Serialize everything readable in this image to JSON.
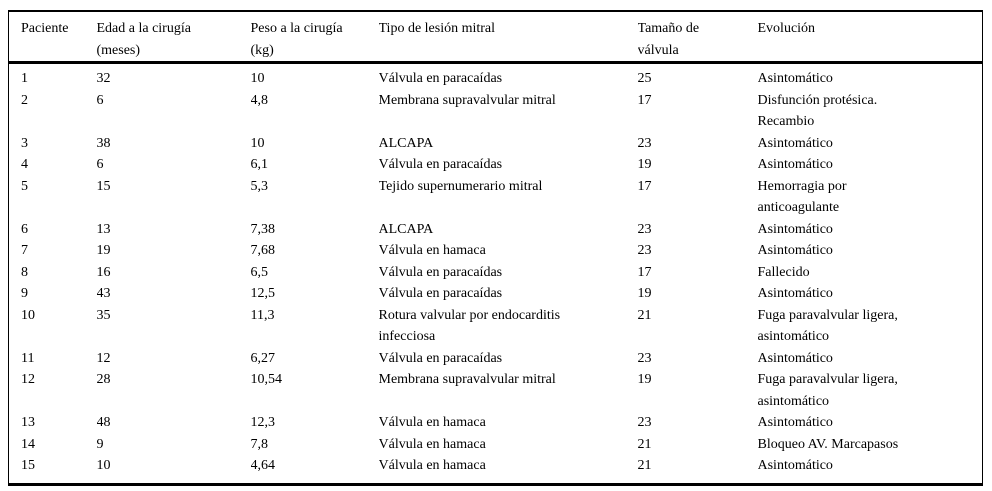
{
  "page": {
    "background_color": "#ffffff",
    "text_color": "#000000",
    "rule_color": "#000000"
  },
  "table": {
    "col_keys": [
      "paciente",
      "edad",
      "peso",
      "tipo",
      "tamano",
      "evolucion"
    ],
    "headers": [
      "Paciente",
      "Edad a la cirugía\n(meses)",
      "Peso a la cirugía\n(kg)",
      "Tipo de lesión mitral",
      "Tamaño de\nválvula",
      "Evolución"
    ],
    "rows": [
      [
        "1",
        "32",
        "10",
        "Válvula en paracaídas",
        "25",
        "Asintomático"
      ],
      [
        "2",
        "6",
        "4,8",
        "Membrana supravalvular mitral",
        "17",
        "Disfunción protésica.\nRecambio"
      ],
      [
        "3",
        "38",
        "10",
        "ALCAPA",
        "23",
        "Asintomático"
      ],
      [
        "4",
        "6",
        "6,1",
        "Válvula en paracaídas",
        "19",
        "Asintomático"
      ],
      [
        "5",
        "15",
        "5,3",
        "Tejido supernumerario mitral",
        "17",
        "Hemorragia por\nanticoagulante"
      ],
      [
        "6",
        "13",
        "7,38",
        "ALCAPA",
        "23",
        "Asintomático"
      ],
      [
        "7",
        "19",
        "7,68",
        "Válvula en hamaca",
        "23",
        "Asintomático"
      ],
      [
        "8",
        "16",
        "6,5",
        "Válvula en paracaídas",
        "17",
        "Fallecido"
      ],
      [
        "9",
        "43",
        "12,5",
        "Válvula en paracaídas",
        "19",
        "Asintomático"
      ],
      [
        "10",
        "35",
        "11,3",
        "Rotura valvular por endocarditis\ninfecciosa",
        "21",
        "Fuga paravalvular ligera,\nasintomático"
      ],
      [
        "11",
        "12",
        "6,27",
        "Válvula en paracaídas",
        "23",
        "Asintomático"
      ],
      [
        "12",
        "28",
        "10,54",
        "Membrana supravalvular mitral",
        "19",
        "Fuga paravalvular ligera,\nasintomático"
      ],
      [
        "13",
        "48",
        "12,3",
        "Válvula en hamaca",
        "23",
        "Asintomático"
      ],
      [
        "14",
        "9",
        "7,8",
        "Válvula en hamaca",
        "21",
        "Bloqueo AV. Marcapasos"
      ],
      [
        "15",
        "10",
        "4,64",
        "Válvula en hamaca",
        "21",
        "Asintomático"
      ]
    ]
  }
}
